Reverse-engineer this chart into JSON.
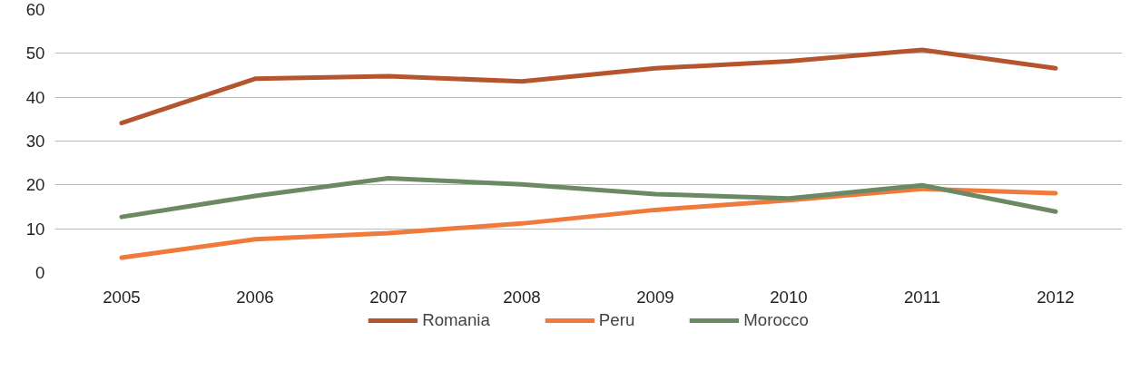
{
  "chart_data": {
    "type": "line",
    "categories": [
      "2005",
      "2006",
      "2007",
      "2008",
      "2009",
      "2010",
      "2011",
      "2012"
    ],
    "series": [
      {
        "name": "Romania",
        "color": "#b5552e",
        "values": [
          34.1,
          44.2,
          44.8,
          43.6,
          46.6,
          48.2,
          50.8,
          46.6
        ]
      },
      {
        "name": "Peru",
        "color": "#f07a3c",
        "values": [
          3.4,
          7.6,
          9.0,
          11.2,
          14.3,
          16.5,
          19.1,
          18.1
        ]
      },
      {
        "name": "Morocco",
        "color": "#6b8a63",
        "values": [
          12.7,
          17.5,
          21.5,
          20.1,
          17.9,
          16.9,
          19.9,
          13.9
        ]
      }
    ],
    "ylim": [
      0,
      60
    ],
    "yticks": [
      0,
      10,
      20,
      30,
      40,
      50,
      60
    ],
    "grid": "y",
    "legend": "bottom",
    "marker": "none",
    "line_style": "solid"
  }
}
